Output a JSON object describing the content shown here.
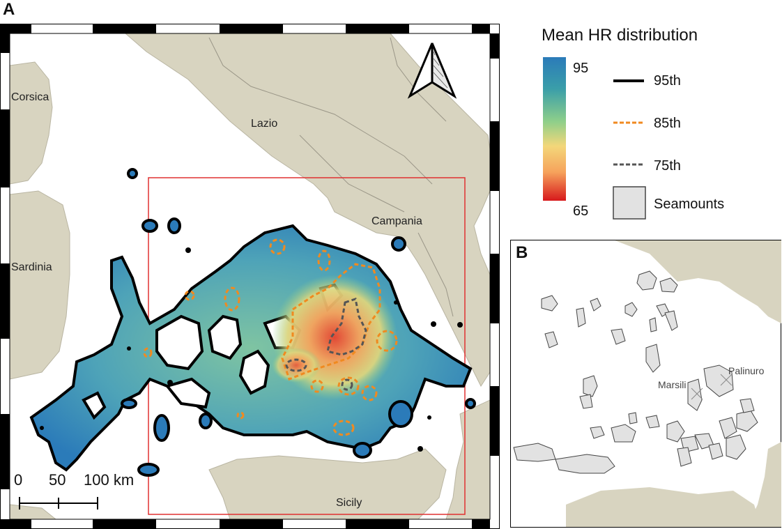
{
  "panels": {
    "a_label": "A",
    "b_label": "B"
  },
  "map_a": {
    "regions": {
      "corsica": "Corsica",
      "sardinia": "Sardinia",
      "lazio": "Lazio",
      "campania": "Campania",
      "sicily": "Sicily"
    },
    "scale_bar": {
      "tick0": "0",
      "tick1": "50",
      "tick2": "100 km"
    },
    "north_arrow_icon": "north-arrow-icon"
  },
  "legend": {
    "title": "Mean HR distribution",
    "gradient_max": "95",
    "gradient_min": "65",
    "gradient_colors": [
      "#2b7bb9",
      "#3a9ea9",
      "#8fcf8a",
      "#f3d77a",
      "#f6a35c",
      "#e8432f",
      "#d7191c"
    ],
    "items": [
      {
        "label": "95th",
        "color": "#000000",
        "style": "solid"
      },
      {
        "label": "85th",
        "color": "#f08a20",
        "style": "dashed"
      },
      {
        "label": "75th",
        "color": "#555555",
        "style": "dashed"
      },
      {
        "label": "Seamounts",
        "color": "#e0e0e0",
        "style": "fill"
      }
    ]
  },
  "map_b": {
    "labels": {
      "marsili": "Marsili",
      "palinuro": "Palinuro"
    }
  },
  "colors": {
    "land": "#d8d4c0",
    "sea": "#ffffff",
    "study_box": "#e03030",
    "seamount_fill": "#e2e2e2"
  }
}
